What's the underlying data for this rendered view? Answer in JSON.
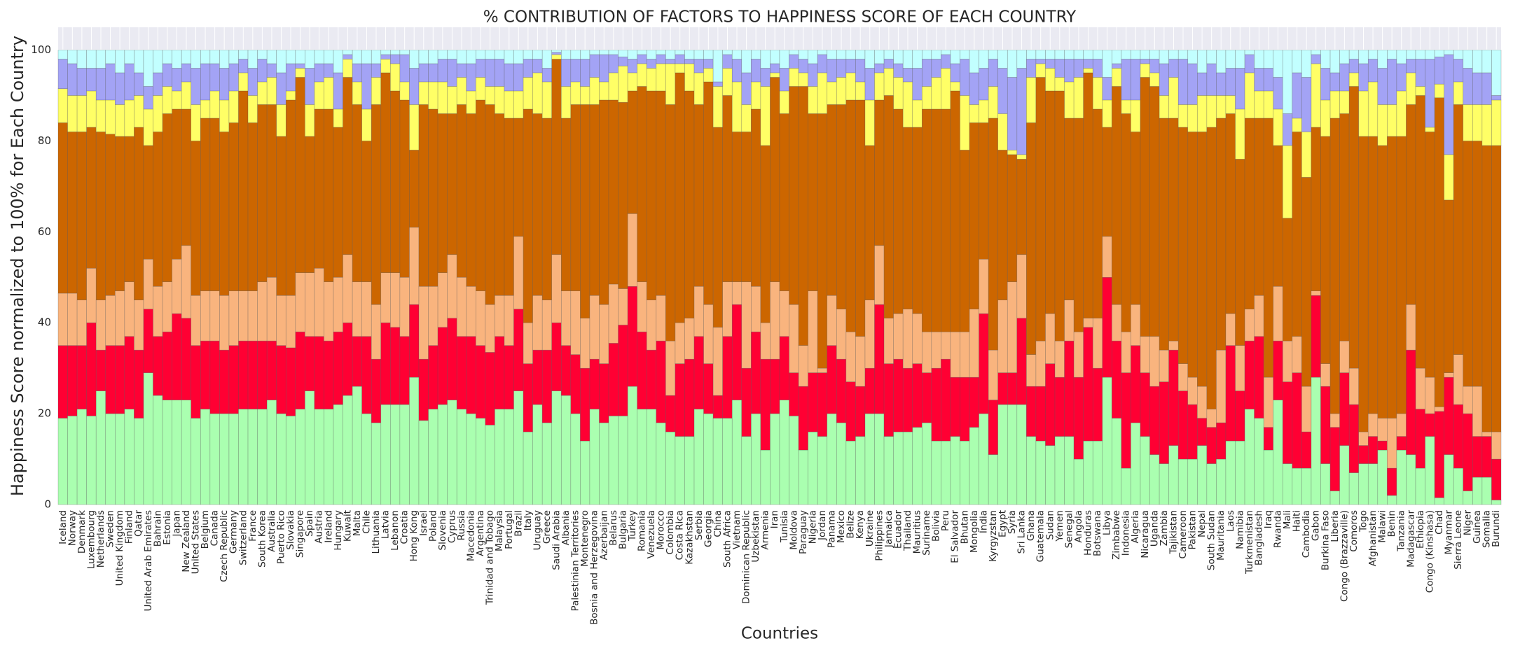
{
  "chart_data": {
    "type": "bar",
    "stacked": true,
    "title": "% CONTRIBUTION OF FACTORS TO HAPPINESS SCORE OF EACH COUNTRY",
    "xlabel": "Countries",
    "ylabel": "Happiness Score normalized to 100% for Each Country",
    "ylim": [
      0,
      105
    ],
    "yticks": [
      0,
      20,
      40,
      60,
      80,
      100
    ],
    "grid": true,
    "categories": [
      "Iceland",
      "Norway",
      "Denmark",
      "Luxembourg",
      "Netherlands",
      "Sweden",
      "United Kingdom",
      "Finland",
      "Qatar",
      "United Arab Emirates",
      "Bahrain",
      "Estonia",
      "Japan",
      "New Zealand",
      "United States",
      "Belgium",
      "Canada",
      "Czech Republic",
      "Germany",
      "Switzerland",
      "France",
      "South Korea",
      "Australia",
      "Puerto Rico",
      "Slovakia",
      "Singapore",
      "Spain",
      "Austria",
      "Ireland",
      "Hungary",
      "Kuwait",
      "Malta",
      "Chile",
      "Lithuania",
      "Latvia",
      "Lebanon",
      "Croatia",
      "Hong Kong",
      "Israel",
      "Poland",
      "Slovenia",
      "Cyprus",
      "Russia",
      "Macedonia",
      "Argentina",
      "Trinidad and Tobago",
      "Malaysia",
      "Portugal",
      "Brazil",
      "Italy",
      "Uruguay",
      "Greece",
      "Saudi Arabia",
      "Albania",
      "Palestinian Territories",
      "Montenegro",
      "Bosnia and Herzegovina",
      "Azerbaijan",
      "Belarus",
      "Bulgaria",
      "Turkey",
      "Romania",
      "Venezuela",
      "Morocco",
      "Colombia",
      "Costa Rica",
      "Kazakhstan",
      "Serbia",
      "Georgia",
      "China",
      "South Africa",
      "Vietnam",
      "Dominican Republic",
      "Uzbekistan",
      "Armenia",
      "Iran",
      "Tunisia",
      "Moldova",
      "Paraguay",
      "Nigeria",
      "Jordan",
      "Panama",
      "Mexico",
      "Belize",
      "Kenya",
      "Ukraine",
      "Philippines",
      "Jamaica",
      "Ecuador",
      "Thailand",
      "Mauritius",
      "Suriname",
      "Bolivia",
      "Peru",
      "El Salvador",
      "Bhutan",
      "Mongolia",
      "India",
      "Kyrgyzstan",
      "Egypt",
      "Syria",
      "Sri Lanka",
      "Ghana",
      "Guatemala",
      "Sudan",
      "Yemen",
      "Senegal",
      "Angola",
      "Honduras",
      "Botswana",
      "Libya",
      "Zimbabwe",
      "Indonesia",
      "Algeria",
      "Nicaragua",
      "Uganda",
      "Zambia",
      "Tajikistan",
      "Cameroon",
      "Pakistan",
      "Nepal",
      "South Sudan",
      "Mauritania",
      "Laos",
      "Namibia",
      "Turkmenistan",
      "Bangladesh",
      "Iraq",
      "Rwanda",
      "Mali",
      "Haiti",
      "Cambodia",
      "Gabon",
      "Burkina Faso",
      "Liberia",
      "Congo (Brazzaville)",
      "Comoros",
      "Togo",
      "Afghanistan",
      "Malawi",
      "Benin",
      "Tanzania",
      "Madagascar",
      "Ethiopia",
      "Congo (Kinshasa)",
      "Chad",
      "Myanmar",
      "Sierra Leone",
      "Niger",
      "Guinea",
      "Somalia",
      "Burundi"
    ],
    "series": [
      {
        "color": "#aaffb0",
        "values": [
          19,
          19.5,
          21,
          19.5,
          25,
          20,
          20,
          21,
          19,
          29,
          24,
          23,
          23,
          23,
          19,
          21,
          20,
          20,
          20,
          21,
          21,
          21,
          23,
          20,
          19.5,
          21,
          25,
          21,
          21,
          22,
          24,
          26,
          20,
          18,
          22,
          22,
          22,
          28,
          18.5,
          21,
          22,
          23,
          21,
          20,
          19,
          17.5,
          21,
          21,
          25,
          16,
          22,
          18,
          25,
          24,
          20,
          14,
          21,
          18,
          19.5,
          19.5,
          26,
          21,
          21,
          18,
          16,
          15,
          15,
          21,
          20,
          19,
          19,
          23,
          15,
          20,
          12,
          20,
          23,
          19.5,
          12,
          16,
          15,
          20,
          18,
          14,
          15,
          20,
          20,
          15,
          16,
          16,
          17,
          18,
          14,
          14,
          15,
          14,
          17,
          20,
          11,
          22,
          22,
          22,
          15,
          14,
          13,
          15,
          15,
          10,
          14,
          14,
          28,
          19,
          8,
          18,
          15,
          11,
          9,
          13,
          10,
          10,
          13,
          9,
          10,
          14,
          14,
          21,
          19,
          12,
          23,
          9,
          8,
          8,
          28,
          9,
          3,
          13,
          7,
          9,
          9,
          12,
          2,
          12,
          11,
          8,
          15,
          1.5,
          11,
          8,
          3,
          6,
          6,
          1
        ]
      },
      {
        "color": "#ff0033",
        "values": [
          16,
          15.5,
          14,
          20.5,
          9,
          15,
          15,
          16,
          15,
          14,
          13,
          15,
          19,
          18,
          16,
          15,
          16,
          14,
          15,
          15,
          15,
          15,
          13,
          15,
          15,
          17,
          12,
          16,
          15,
          16,
          16,
          11,
          17,
          14,
          18,
          17,
          15,
          16,
          13.5,
          14,
          17,
          18,
          16,
          17,
          16,
          16,
          16,
          14,
          18,
          15,
          12,
          16,
          15,
          11,
          13,
          16,
          11,
          13,
          16,
          20,
          22,
          17,
          13,
          18,
          8,
          16,
          17,
          16,
          11,
          5,
          18,
          21,
          15,
          18,
          20,
          12,
          14,
          9.5,
          14,
          13,
          14,
          15,
          14,
          13,
          11,
          10,
          24,
          16,
          16,
          14,
          14,
          11,
          16,
          18,
          13,
          14,
          11,
          22,
          12,
          7,
          7,
          19,
          11,
          12,
          18,
          13,
          21,
          18,
          25,
          16,
          22,
          17,
          21,
          17,
          14,
          15,
          18,
          21,
          15,
          12,
          6,
          8,
          8,
          21,
          11,
          15,
          18,
          5,
          13,
          18,
          21,
          8,
          18,
          17,
          14,
          16,
          15,
          4,
          6,
          2,
          6,
          3,
          23,
          13,
          5,
          19,
          17,
          14,
          17,
          9,
          9,
          9
        ]
      },
      {
        "color": "#f9b47e",
        "values": [
          11.5,
          11.5,
          10,
          12,
          11,
          11,
          12,
          12,
          11,
          11,
          11,
          11,
          12,
          16,
          11,
          11,
          11,
          12,
          12,
          11,
          11,
          13,
          14,
          11,
          11.5,
          13,
          14,
          15,
          13,
          12,
          15,
          12,
          12,
          12,
          11,
          12,
          13,
          17,
          16,
          13,
          12,
          14,
          13,
          11,
          12,
          10.5,
          9,
          11,
          16,
          9,
          12,
          11,
          15,
          12,
          14,
          11,
          14,
          13,
          13,
          8,
          16,
          11,
          11,
          10,
          12,
          9,
          9,
          11,
          13,
          15,
          12,
          5,
          19,
          10,
          8,
          17,
          10,
          15,
          9,
          18,
          1,
          11,
          11,
          11,
          11,
          15,
          13,
          10,
          10,
          13,
          11,
          9,
          8,
          6,
          10,
          10,
          15,
          12,
          11,
          16,
          20,
          14,
          7,
          10,
          11,
          8,
          9,
          10,
          2,
          11,
          9,
          8,
          9,
          9,
          8,
          11,
          7,
          2,
          6,
          6,
          7,
          4,
          16,
          7,
          10,
          7,
          9,
          11,
          12,
          9,
          8,
          10,
          1,
          5,
          3,
          7,
          8,
          3,
          5,
          5,
          11,
          5,
          10,
          9,
          8,
          1,
          1,
          11,
          6,
          11,
          1,
          6
        ]
      },
      {
        "color": "#cc6600",
        "values": [
          37.5,
          35.5,
          37,
          31,
          37,
          35.5,
          34,
          32,
          38,
          25,
          34,
          37,
          33,
          30,
          34,
          38,
          38,
          36,
          37,
          44,
          37,
          39,
          38,
          35,
          43,
          43,
          30,
          35,
          38,
          33,
          39,
          39,
          31,
          44,
          44,
          40,
          39,
          17,
          40,
          39,
          35,
          31,
          38,
          38,
          42,
          44,
          40,
          39,
          26,
          47,
          40,
          40,
          43,
          38,
          41,
          47,
          42,
          45,
          40.5,
          41,
          27,
          43,
          46,
          45,
          52,
          55,
          50,
          40,
          49,
          44,
          41,
          33,
          33,
          39,
          39,
          45,
          39,
          48,
          57,
          39,
          56,
          42,
          45,
          51,
          52,
          34,
          32,
          49,
          45,
          40,
          41,
          49,
          49,
          49,
          53,
          40,
          41,
          30,
          51,
          33,
          28,
          21,
          51,
          58,
          49,
          55,
          40,
          47,
          54,
          46,
          24,
          48,
          48,
          38,
          57,
          55,
          51,
          49,
          52,
          54,
          56,
          62,
          51,
          44,
          41,
          42,
          39,
          57,
          31,
          27,
          45,
          46,
          36,
          50,
          65,
          50,
          62,
          65,
          61,
          60,
          62,
          61,
          44,
          60,
          54,
          68,
          38,
          55,
          54,
          54,
          63,
          63
        ]
      },
      {
        "color": "#ffff66",
        "values": [
          7.5,
          8,
          8,
          8,
          7,
          7.5,
          7,
          8,
          7,
          8,
          8,
          6,
          4,
          6,
          8,
          4,
          6,
          7,
          7,
          4,
          6,
          5,
          6,
          7,
          2,
          2,
          7,
          6,
          7,
          4,
          4,
          5,
          7,
          6,
          3,
          6,
          4,
          10,
          5,
          6,
          7,
          6,
          6,
          5,
          5,
          4,
          6,
          6,
          6,
          7,
          9,
          8,
          1,
          7,
          5,
          4,
          6,
          4,
          6,
          8,
          4,
          5,
          5,
          6,
          9,
          2,
          6,
          7,
          3,
          9,
          6,
          11,
          6,
          6,
          13,
          1,
          5,
          4,
          3,
          6,
          9,
          5,
          6,
          6,
          4,
          10,
          6,
          6,
          7,
          10,
          6,
          5,
          7,
          9,
          2,
          12,
          4,
          5,
          7,
          8,
          1,
          1,
          10,
          3,
          5,
          3,
          8,
          9,
          1,
          7,
          6,
          4,
          3,
          7,
          3,
          3,
          5,
          9,
          5,
          6,
          8,
          7,
          5,
          4,
          11,
          10,
          6,
          6,
          8,
          16,
          3,
          10,
          14,
          8,
          6,
          5,
          3,
          10,
          12,
          9,
          7,
          10,
          7,
          2,
          1,
          3,
          10,
          5,
          8,
          8,
          9,
          10
        ]
      },
      {
        "color": "#a3a3f5",
        "values": [
          6.5,
          7,
          6,
          5,
          7,
          8,
          7,
          8,
          5,
          5,
          5,
          5,
          5,
          4,
          8,
          8,
          6,
          7,
          6,
          3,
          6,
          5,
          3,
          7,
          6,
          1,
          8,
          4,
          3,
          8,
          1,
          4,
          10,
          3,
          1,
          2,
          6,
          8,
          4,
          4,
          5,
          6,
          3,
          6,
          4,
          6,
          6,
          6,
          6,
          4,
          3,
          3,
          0.5,
          6,
          5,
          6,
          5,
          6,
          4,
          2,
          3,
          2,
          2,
          2,
          1,
          2,
          1,
          3,
          2,
          1,
          3,
          5,
          7,
          5,
          4,
          2,
          5,
          3,
          3,
          5,
          4,
          5,
          4,
          3,
          5,
          7,
          2,
          2,
          3,
          3,
          7,
          6,
          4,
          3,
          4,
          8,
          7,
          7,
          6,
          10,
          16,
          19,
          4,
          1,
          2,
          4,
          5,
          4,
          2,
          4,
          5,
          1,
          9,
          9,
          1,
          3,
          7,
          4,
          10,
          9,
          5,
          7,
          5,
          6,
          9,
          4,
          5,
          5,
          7,
          7,
          10,
          12,
          2,
          7,
          4,
          6,
          3,
          6,
          5,
          8,
          10,
          6,
          3,
          6,
          15,
          6,
          22,
          5,
          8,
          7,
          7,
          1
        ]
      },
      {
        "color": "#c2ffff",
        "values": [
          2,
          3,
          4,
          4,
          4,
          3,
          5,
          3,
          5,
          8,
          5,
          3,
          4,
          3,
          4,
          3,
          3,
          4,
          3,
          2,
          4,
          2,
          3,
          5,
          3,
          3,
          4,
          3,
          3,
          5,
          1,
          3,
          3,
          3,
          1,
          1,
          1,
          4,
          3,
          3,
          2,
          2,
          3,
          3,
          2,
          2,
          2,
          3,
          3,
          2,
          2,
          4,
          0.5,
          2,
          2,
          2,
          1,
          1,
          1,
          1.5,
          2,
          1,
          2,
          1,
          2,
          1,
          2,
          2,
          2,
          7,
          1,
          2,
          5,
          2,
          4,
          3,
          4,
          1,
          2,
          3,
          1,
          2,
          2,
          2,
          2,
          4,
          3,
          2,
          3,
          4,
          4,
          2,
          2,
          1,
          3,
          2,
          5,
          4,
          2,
          4,
          6,
          4,
          2,
          2,
          2,
          2,
          2,
          2,
          2,
          2,
          6,
          3,
          2,
          2,
          2,
          2,
          3,
          2,
          2,
          3,
          5,
          3,
          5,
          4,
          4,
          1,
          4,
          4,
          6,
          14,
          5,
          6,
          1,
          4,
          5,
          3,
          2,
          3,
          2,
          4,
          2,
          3,
          2,
          2,
          2,
          1.5,
          1,
          2,
          4,
          5,
          5,
          10
        ]
      }
    ]
  }
}
